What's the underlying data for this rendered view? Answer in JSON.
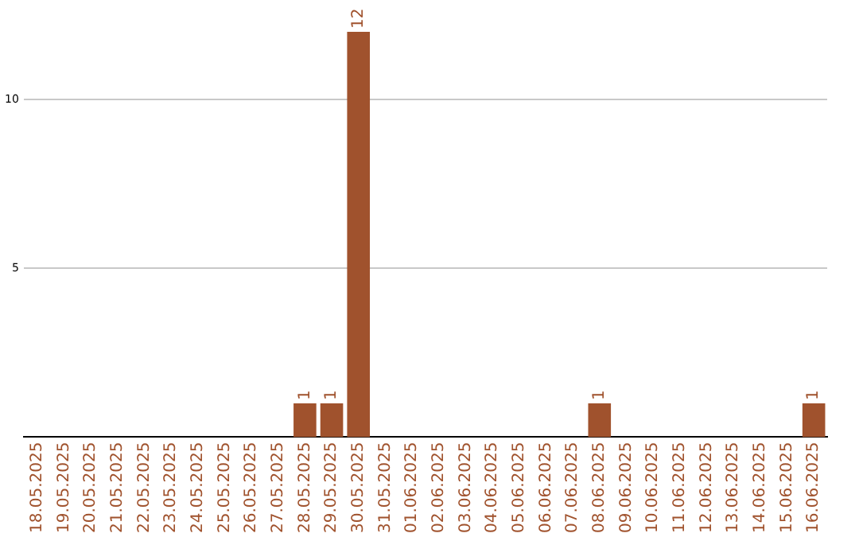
{
  "chart_data": {
    "type": "bar",
    "categories": [
      "18.05.2025",
      "19.05.2025",
      "20.05.2025",
      "21.05.2025",
      "22.05.2025",
      "23.05.2025",
      "24.05.2025",
      "25.05.2025",
      "26.05.2025",
      "27.05.2025",
      "28.05.2025",
      "29.05.2025",
      "30.05.2025",
      "31.05.2025",
      "01.06.2025",
      "02.06.2025",
      "03.06.2025",
      "04.06.2025",
      "05.06.2025",
      "06.06.2025",
      "07.06.2025",
      "08.06.2025",
      "09.06.2025",
      "10.06.2025",
      "11.06.2025",
      "12.06.2025",
      "13.06.2025",
      "14.06.2025",
      "15.06.2025",
      "16.06.2025"
    ],
    "values": [
      0,
      0,
      0,
      0,
      0,
      0,
      0,
      0,
      0,
      0,
      1,
      1,
      12,
      0,
      0,
      0,
      0,
      0,
      0,
      0,
      0,
      1,
      0,
      0,
      0,
      0,
      0,
      0,
      0,
      1
    ],
    "value_labels": [
      null,
      null,
      null,
      null,
      null,
      null,
      null,
      null,
      null,
      null,
      "1",
      "1",
      "12",
      null,
      null,
      null,
      null,
      null,
      null,
      null,
      null,
      "1",
      null,
      null,
      null,
      null,
      null,
      null,
      null,
      "1"
    ],
    "color": "#a0522d",
    "ylim": [
      0,
      12
    ],
    "yticks": [
      5,
      10
    ],
    "grid": "y",
    "legend": false
  }
}
